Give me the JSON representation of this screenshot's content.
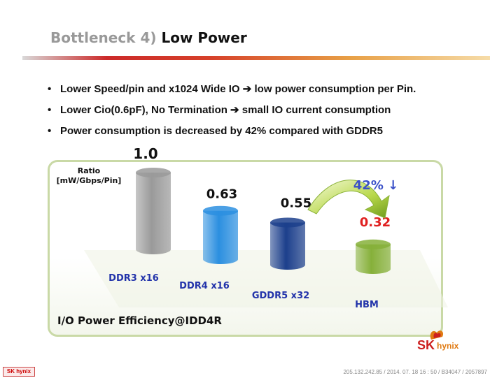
{
  "slide": {
    "title_prefix": "Bottleneck 4)",
    "title_main": "Low Power",
    "bullets": [
      "Lower Speed/pin and  x1024 Wide IO ➔ low power consumption per Pin.",
      "Lower Cio(0.6pF), No Termination ➔ small IO current consumption",
      "Power consumption is decreased by 42% compared with GDDR5"
    ],
    "bullet_glyph": "•"
  },
  "chart_data": {
    "type": "bar",
    "ylabel": "Ratio [mW/Gbps/Pin]",
    "ylabel_lines": [
      "Ratio",
      "[mW/Gbps/Pin]"
    ],
    "categories": [
      "DDR3 x16",
      "DDR4 x16",
      "GDDR5 x32",
      "HBM"
    ],
    "values": [
      1.0,
      0.63,
      0.55,
      0.32
    ],
    "value_labels": [
      "1.0",
      "0.63",
      "0.55",
      "0.32"
    ],
    "bar_colors": [
      "#9a9a9a",
      "#2b8fe0",
      "#1c3f8c",
      "#86b03a"
    ],
    "value_label_colors": [
      "#111111",
      "#111111",
      "#111111",
      "#e02020"
    ],
    "category_color": "#2233aa",
    "annotation": "42% ↓",
    "annotation_color": "#3a50c8",
    "footer_caption": "I/O Power Efficiency@IDD4R",
    "ylim": [
      0,
      1.0
    ],
    "grid": false,
    "legend": "none"
  },
  "footer": {
    "stamp": "205.132.242.85 / 2014. 07. 18  16 : 50 / B34047 / 2057897",
    "small_logo": "SK hynix"
  },
  "brand": {
    "sk": "SK",
    "hynix": "hynix"
  }
}
